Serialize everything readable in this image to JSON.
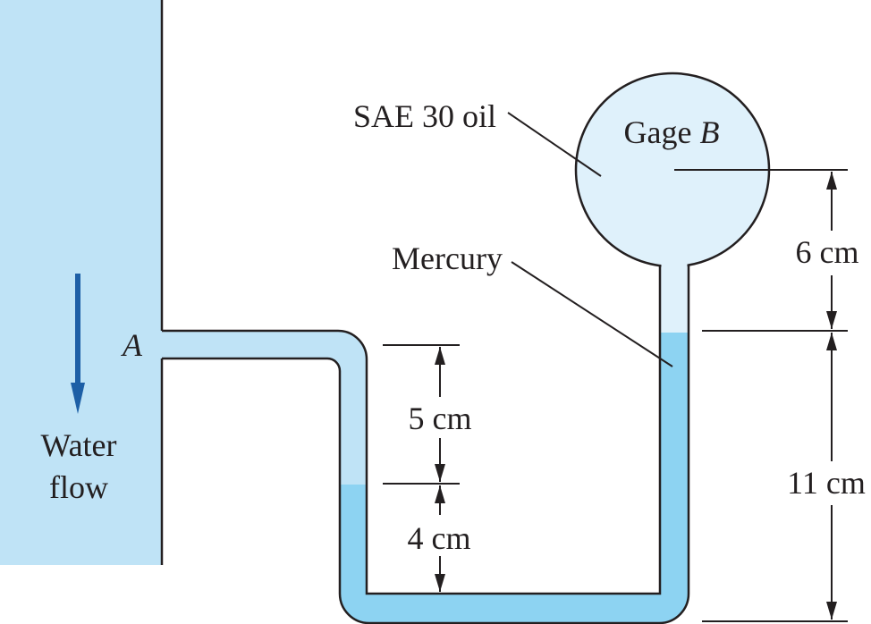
{
  "figure": {
    "point_a": "A",
    "water_label_line1": "Water",
    "water_label_line2": "flow",
    "oil_label": "SAE 30 oil",
    "mercury_label": "Mercury",
    "gage_word": "Gage",
    "gage_letter": "B",
    "dim_6": "6 cm",
    "dim_11": "11 cm",
    "dim_5": "5 cm",
    "dim_4": "4 cm"
  },
  "colors": {
    "water": "#bfe3f6",
    "oil": "#dff1fb",
    "mercury": "#8dd3f2",
    "line": "#231f20",
    "arrow": "#1d5fa6"
  }
}
